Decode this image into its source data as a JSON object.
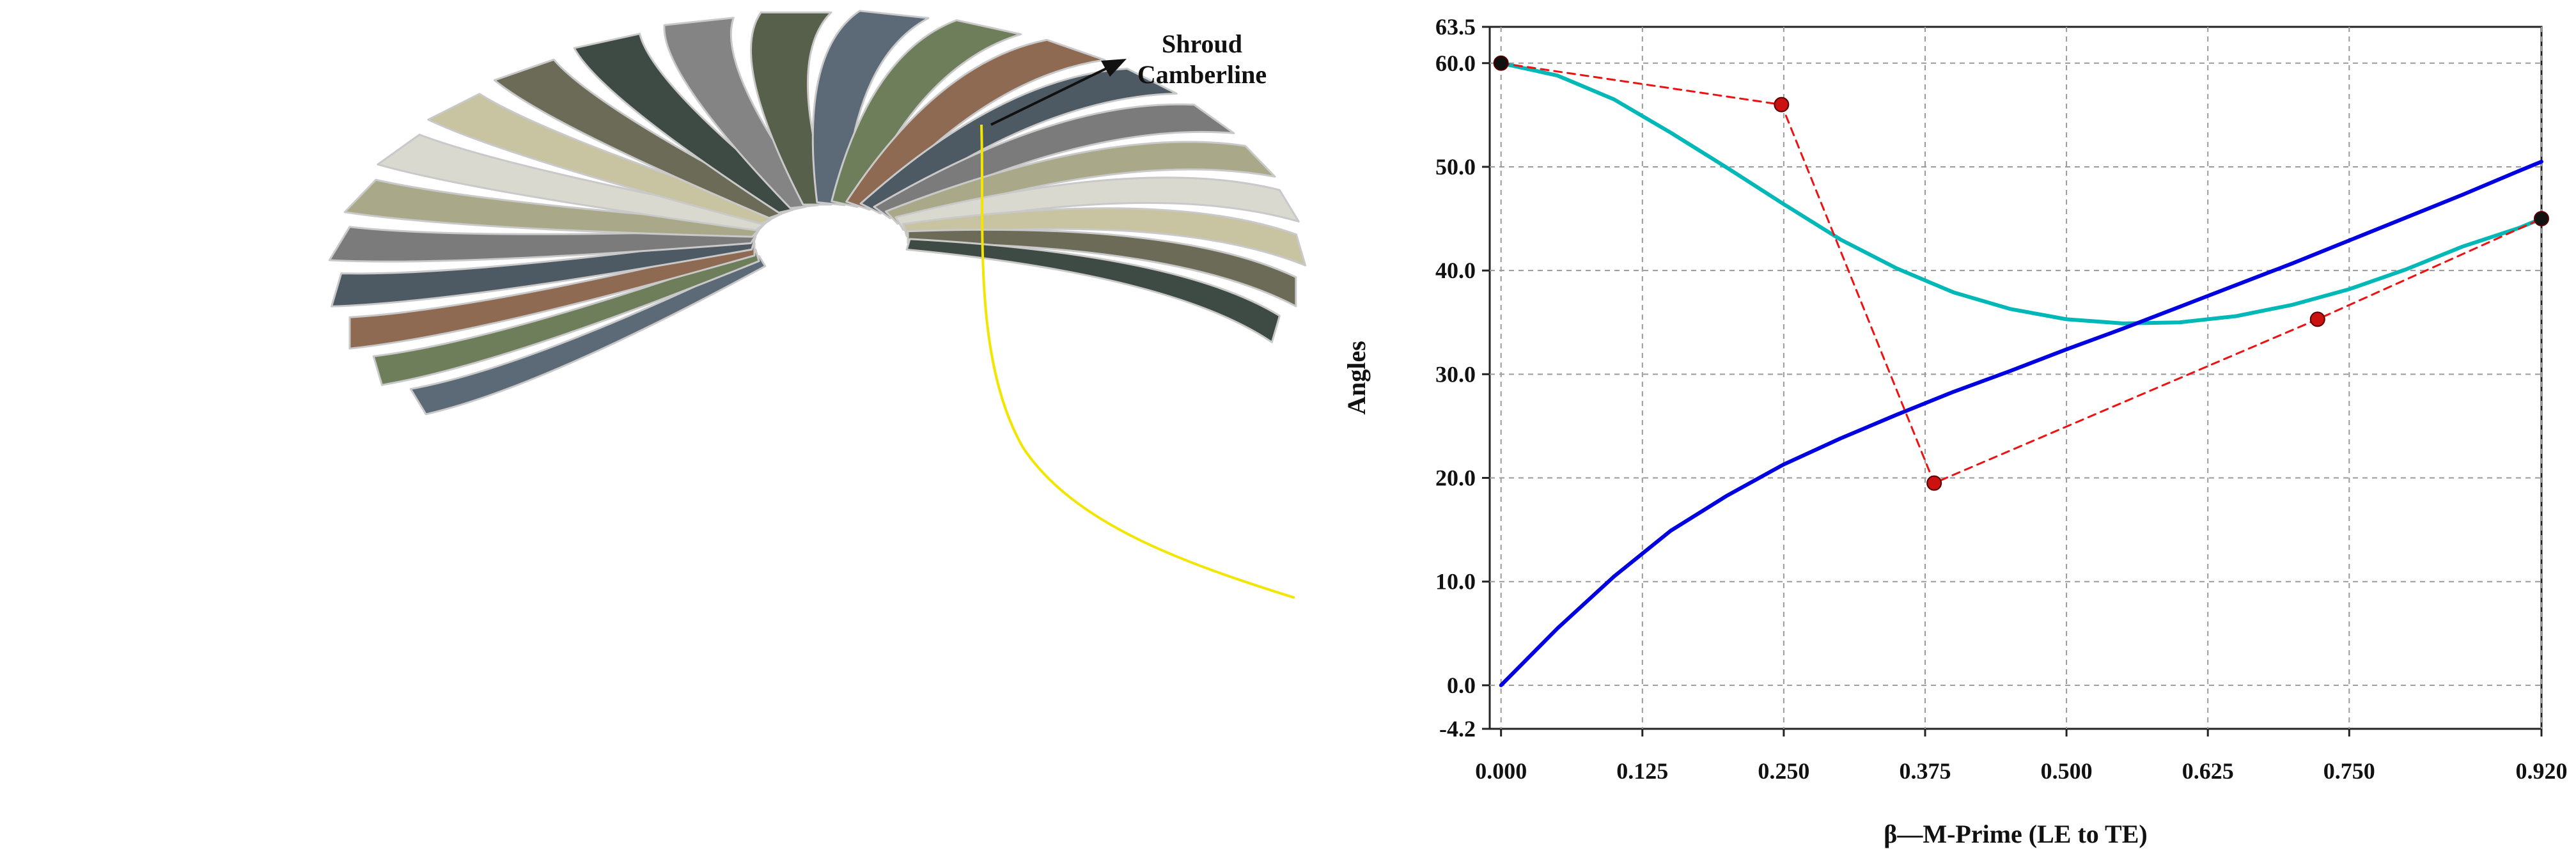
{
  "annotation": {
    "line1": "Shroud",
    "line2": "Camberline"
  },
  "impeller": {
    "colors": [
      "#5c6a77",
      "#6e7e5a",
      "#8f6a52",
      "#4e5a63",
      "#7b7b7b",
      "#a9a98a",
      "#d9d9cf",
      "#c8c3a0",
      "#6b6b58",
      "#3e4a44",
      "#848484",
      "#56604a"
    ],
    "camberline_color": "#f2e600"
  },
  "chart_data": {
    "type": "line",
    "xlabel": "β—M-Prime (LE to TE)",
    "ylabel": "Angles",
    "xlim": [
      -0.01,
      0.92
    ],
    "ylim": [
      -4.2,
      63.5
    ],
    "x_ticks": [
      {
        "value": 0.0,
        "label": "0.000"
      },
      {
        "value": 0.125,
        "label": "0.125"
      },
      {
        "value": 0.25,
        "label": "0.250"
      },
      {
        "value": 0.375,
        "label": "0.375"
      },
      {
        "value": 0.5,
        "label": "0.500"
      },
      {
        "value": 0.625,
        "label": "0.625"
      },
      {
        "value": 0.75,
        "label": "0.750"
      },
      {
        "value": 0.92,
        "label": "0.920"
      }
    ],
    "y_ticks": [
      {
        "value": 63.5,
        "label": "63.5"
      },
      {
        "value": 60.0,
        "label": "60.0"
      },
      {
        "value": 50.0,
        "label": "50.0"
      },
      {
        "value": 40.0,
        "label": "40.0"
      },
      {
        "value": 30.0,
        "label": "30.0"
      },
      {
        "value": 20.0,
        "label": "20.0"
      },
      {
        "value": 10.0,
        "label": "10.0"
      },
      {
        "value": 0.0,
        "label": "0.0"
      },
      {
        "value": -4.2,
        "label": "-4.2"
      }
    ],
    "grid": true,
    "series": [
      {
        "color": "#00b8b8",
        "style": "solid",
        "x": [
          0.0,
          0.05,
          0.1,
          0.15,
          0.2,
          0.25,
          0.3,
          0.35,
          0.4,
          0.45,
          0.5,
          0.55,
          0.6,
          0.65,
          0.7,
          0.75,
          0.8,
          0.85,
          0.9,
          0.92
        ],
        "y": [
          60.0,
          58.8,
          56.5,
          53.3,
          49.9,
          46.4,
          43.0,
          40.2,
          37.9,
          36.3,
          35.3,
          34.9,
          35.0,
          35.6,
          36.7,
          38.2,
          40.1,
          42.3,
          44.1,
          45.0
        ]
      },
      {
        "color": "#0000e0",
        "style": "solid",
        "x": [
          0.0,
          0.05,
          0.1,
          0.15,
          0.2,
          0.25,
          0.3,
          0.35,
          0.4,
          0.45,
          0.5,
          0.55,
          0.6,
          0.65,
          0.7,
          0.75,
          0.8,
          0.85,
          0.9,
          0.92
        ],
        "y": [
          0.0,
          5.5,
          10.5,
          14.9,
          18.3,
          21.3,
          23.8,
          26.1,
          28.3,
          30.3,
          32.4,
          34.4,
          36.5,
          38.6,
          40.7,
          42.9,
          45.1,
          47.3,
          49.6,
          50.5
        ]
      },
      {
        "color": "#ee1111",
        "style": "dashed",
        "marker": "circle",
        "x": [
          0.0,
          0.248,
          0.383,
          0.722,
          0.92
        ],
        "y": [
          60.0,
          56.0,
          19.5,
          35.3,
          45.0
        ]
      }
    ]
  }
}
